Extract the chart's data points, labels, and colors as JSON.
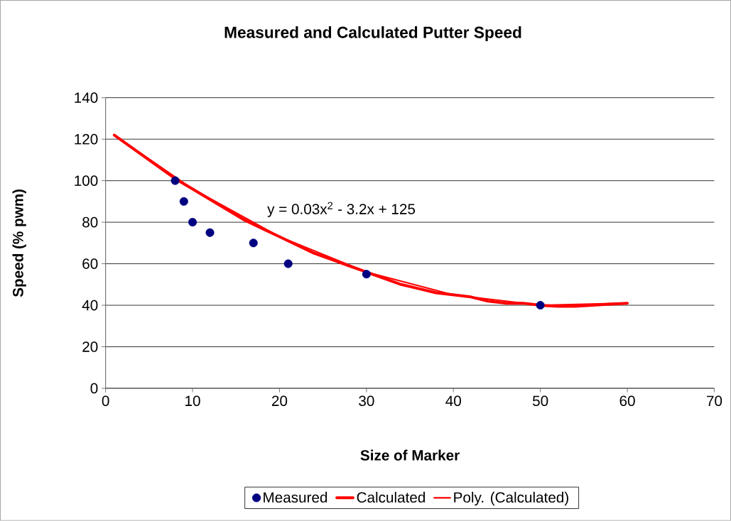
{
  "chart_data": {
    "type": "line",
    "title": "Measured and Calculated Putter Speed",
    "xlabel": "Size of Marker",
    "ylabel": "Speed (% pwm)",
    "xlim": [
      0,
      70
    ],
    "xticks": [
      0,
      10,
      20,
      30,
      40,
      50,
      60,
      70
    ],
    "ylim": [
      0,
      140
    ],
    "yticks": [
      0,
      20,
      40,
      60,
      80,
      100,
      120,
      140
    ],
    "grid": "y",
    "legend": "bottom",
    "annotations": [
      "y = 0.03x$^{2}$ - 3.2x + 125"
    ],
    "series": [
      {
        "name": "Measured",
        "type": "scatter",
        "marker": "circle",
        "color": "#000080",
        "x": [
          8,
          9,
          10,
          12,
          17,
          21,
          30,
          50
        ],
        "values": [
          100,
          90,
          80,
          75,
          70,
          60,
          55,
          40
        ]
      },
      {
        "name": "Calculated",
        "color": "#ff0000",
        "x": [
          1,
          2,
          4,
          6,
          8,
          10,
          12,
          14,
          16,
          18,
          20,
          22,
          24,
          26,
          28,
          30,
          32,
          34,
          36,
          38,
          40,
          42,
          44,
          46,
          48,
          50,
          52,
          54,
          56,
          58,
          60
        ],
        "values": [
          122,
          119,
          113,
          107,
          101,
          96,
          91,
          86,
          81,
          77,
          73,
          69,
          65,
          62,
          59,
          56,
          53,
          50,
          48,
          46,
          45,
          44,
          42,
          41,
          41,
          40,
          39.5,
          39.5,
          40,
          40.5,
          41
        ]
      },
      {
        "name": "Poly. (Calculated)",
        "color": "#ff0000",
        "x": [
          1,
          10,
          20,
          30,
          40,
          50,
          60
        ],
        "values": [
          122,
          96,
          73,
          56,
          45,
          40,
          41
        ]
      }
    ]
  }
}
